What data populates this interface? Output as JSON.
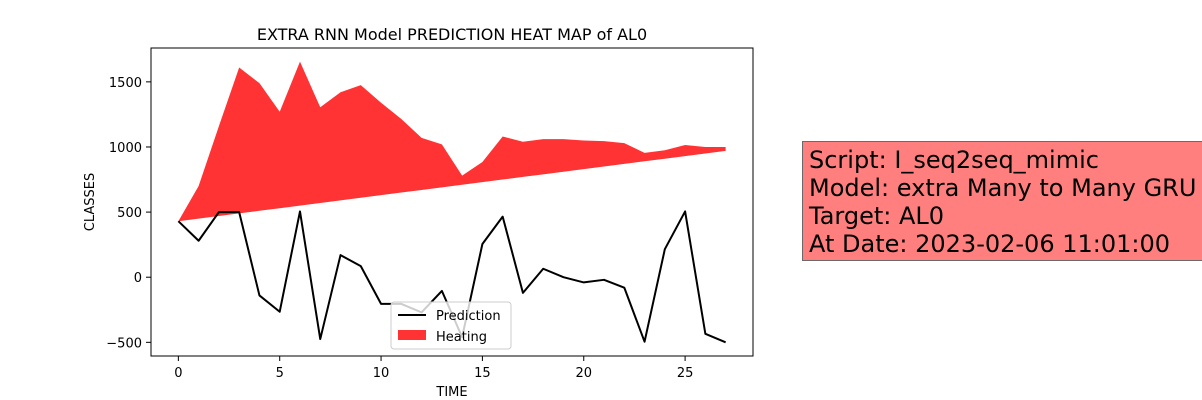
{
  "chart_data": {
    "type": "line",
    "title": "EXTRA RNN Model PREDICTION HEAT MAP of AL0",
    "xlabel": "TIME",
    "ylabel": "CLASSES",
    "xlim": [
      -1.35,
      28.35
    ],
    "ylim": [
      -605,
      1760
    ],
    "xticks": [
      0,
      5,
      10,
      15,
      20,
      25
    ],
    "yticks": [
      -500,
      0,
      500,
      1000,
      1500
    ],
    "grid": false,
    "legend_position": "bottom-center",
    "x": [
      0,
      1,
      2,
      3,
      4,
      5,
      6,
      7,
      8,
      9,
      10,
      11,
      12,
      13,
      14,
      15,
      16,
      17,
      18,
      19,
      20,
      21,
      22,
      23,
      24,
      25,
      26,
      27
    ],
    "series": [
      {
        "name": "Prediction",
        "kind": "line",
        "color": "#000000",
        "values": [
          430,
          280,
          500,
          500,
          -140,
          -265,
          505,
          -475,
          170,
          85,
          -205,
          -205,
          -270,
          -105,
          -460,
          255,
          465,
          -120,
          65,
          0,
          -40,
          -20,
          -80,
          -495,
          215,
          505,
          -435,
          -500
        ]
      },
      {
        "name": "Heating",
        "kind": "fill_between",
        "color": "#ff0000",
        "alpha": 0.8,
        "upper": [
          430,
          700,
          1160,
          1610,
          1490,
          1270,
          1655,
          1305,
          1420,
          1475,
          1340,
          1215,
          1070,
          1020,
          780,
          885,
          1080,
          1040,
          1060,
          1060,
          1050,
          1045,
          1030,
          955,
          975,
          1015,
          1000,
          1000
        ],
        "lower": [
          430,
          450,
          470,
          490,
          510,
          530,
          550,
          570,
          590,
          610,
          630,
          650,
          670,
          690,
          710,
          730,
          750,
          770,
          790,
          810,
          830,
          850,
          870,
          890,
          910,
          930,
          950,
          970
        ]
      }
    ]
  },
  "info": {
    "lines": [
      "Script: I_seq2seq_mimic",
      "Model: extra Many to Many GRU",
      "Target: AL0",
      "At Date: 2023-02-06 11:01:00"
    ],
    "background_color": "#ff7f7f"
  }
}
